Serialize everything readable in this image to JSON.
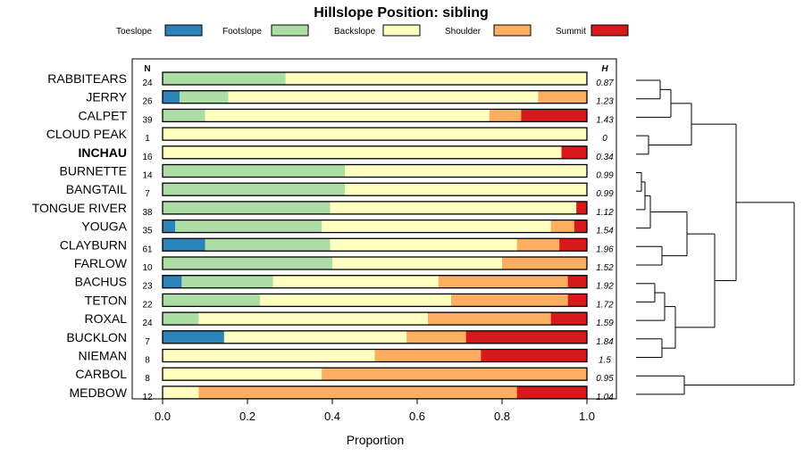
{
  "chart_data": {
    "type": "stacked-bar-horizontal",
    "title": "Hillslope Position: sibling",
    "xlabel": "Proportion",
    "xlim": [
      0,
      1
    ],
    "xticks": [
      "0.0",
      "0.2",
      "0.4",
      "0.6",
      "0.8",
      "1.0"
    ],
    "n_header": "N",
    "h_header": "H",
    "categories": [
      "Toeslope",
      "Footslope",
      "Backslope",
      "Shoulder",
      "Summit"
    ],
    "colors": {
      "Toeslope": "#2b83ba",
      "Footslope": "#abdda4",
      "Backslope": "#ffffbf",
      "Shoulder": "#fdae61",
      "Summit": "#d7191c"
    },
    "rows": [
      {
        "name": "RABBITEARS",
        "bold": false,
        "n": "24",
        "h": "0.87",
        "values": [
          0,
          0.29,
          0.71,
          0,
          0
        ]
      },
      {
        "name": "JERRY",
        "bold": false,
        "n": "26",
        "h": "1.23",
        "values": [
          0.04,
          0.115,
          0.73,
          0.115,
          0
        ]
      },
      {
        "name": "CALPET",
        "bold": false,
        "n": "39",
        "h": "1.43",
        "values": [
          0,
          0.1,
          0.67,
          0.075,
          0.155
        ]
      },
      {
        "name": "CLOUD PEAK",
        "bold": false,
        "n": "1",
        "h": "0",
        "values": [
          0,
          0,
          1,
          0,
          0
        ]
      },
      {
        "name": "INCHAU",
        "bold": true,
        "n": "16",
        "h": "0.34",
        "values": [
          0,
          0,
          0.94,
          0,
          0.06
        ]
      },
      {
        "name": "BURNETTE",
        "bold": false,
        "n": "14",
        "h": "0.99",
        "values": [
          0,
          0.43,
          0.57,
          0,
          0
        ]
      },
      {
        "name": "BANGTAIL",
        "bold": false,
        "n": "7",
        "h": "0.99",
        "values": [
          0,
          0.43,
          0.57,
          0,
          0
        ]
      },
      {
        "name": "TONGUE RIVER",
        "bold": false,
        "n": "38",
        "h": "1.12",
        "values": [
          0,
          0.395,
          0.58,
          0,
          0.025
        ]
      },
      {
        "name": "YOUGA",
        "bold": false,
        "n": "35",
        "h": "1.54",
        "values": [
          0.03,
          0.345,
          0.54,
          0.055,
          0.03
        ]
      },
      {
        "name": "CLAYBURN",
        "bold": false,
        "n": "61",
        "h": "1.96",
        "values": [
          0.1,
          0.295,
          0.44,
          0.1,
          0.065
        ]
      },
      {
        "name": "FARLOW",
        "bold": false,
        "n": "10",
        "h": "1.52",
        "values": [
          0,
          0.4,
          0.4,
          0.2,
          0
        ]
      },
      {
        "name": "BACHUS",
        "bold": false,
        "n": "23",
        "h": "1.92",
        "values": [
          0.045,
          0.215,
          0.39,
          0.305,
          0.045
        ]
      },
      {
        "name": "TETON",
        "bold": false,
        "n": "22",
        "h": "1.72",
        "values": [
          0,
          0.23,
          0.45,
          0.275,
          0.045
        ]
      },
      {
        "name": "ROXAL",
        "bold": false,
        "n": "24",
        "h": "1.59",
        "values": [
          0,
          0.085,
          0.54,
          0.29,
          0.085
        ]
      },
      {
        "name": "BUCKLON",
        "bold": false,
        "n": "7",
        "h": "1.84",
        "values": [
          0.145,
          0,
          0.43,
          0.14,
          0.285
        ]
      },
      {
        "name": "NIEMAN",
        "bold": false,
        "n": "8",
        "h": "1.5",
        "values": [
          0,
          0,
          0.5,
          0.25,
          0.25
        ]
      },
      {
        "name": "CARBOL",
        "bold": false,
        "n": "8",
        "h": "0.95",
        "values": [
          0,
          0,
          0.375,
          0.625,
          0
        ]
      },
      {
        "name": "MEDBOW",
        "bold": false,
        "n": "12",
        "h": "1.04",
        "values": [
          0,
          0,
          0.085,
          0.75,
          0.165
        ]
      }
    ]
  }
}
